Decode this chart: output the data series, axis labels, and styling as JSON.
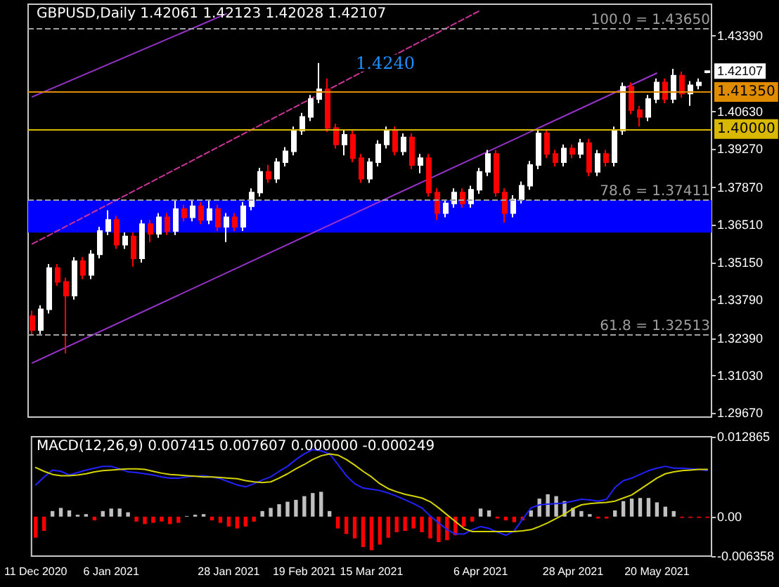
{
  "chart_data": [
    {
      "type": "candlestick",
      "title": "GBPUSD,Daily 1.42061 1.42123 1.42028 1.42107",
      "categories": [
        "11 Dec 2020",
        null,
        null,
        null,
        null,
        null,
        null,
        null,
        null,
        "6 Jan 2021",
        null,
        null,
        null,
        null,
        null,
        null,
        null,
        null,
        null,
        null,
        null,
        null,
        null,
        "28 Jan 2021",
        null,
        null,
        null,
        null,
        null,
        null,
        null,
        null,
        "19 Feb 2021",
        null,
        null,
        null,
        null,
        null,
        null,
        null,
        "15 Mar 2021",
        null,
        null,
        null,
        null,
        null,
        null,
        null,
        null,
        null,
        null,
        null,
        null,
        "6 Apr 2021",
        null,
        null,
        null,
        null,
        null,
        null,
        null,
        null,
        null,
        null,
        "28 Apr 2021",
        null,
        null,
        null,
        null,
        null,
        null,
        null,
        null,
        null,
        "20 May 2021",
        null,
        null,
        null,
        null,
        null,
        null
      ],
      "ohlc": [
        [
          1.3319,
          1.3339,
          1.3249,
          1.3269
        ],
        [
          1.3269,
          1.3359,
          1.3254,
          1.3344
        ],
        [
          1.3344,
          1.3509,
          1.3329,
          1.3494
        ],
        [
          1.3494,
          1.3509,
          1.3429,
          1.3444
        ],
        [
          1.3444,
          1.3459,
          1.3184,
          1.3394
        ],
        [
          1.3394,
          1.3534,
          1.3379,
          1.3519
        ],
        [
          1.3519,
          1.3534,
          1.3454,
          1.3469
        ],
        [
          1.3469,
          1.3559,
          1.3454,
          1.3544
        ],
        [
          1.3544,
          1.3644,
          1.3529,
          1.3629
        ],
        [
          1.3629,
          1.3704,
          1.3614,
          1.3669
        ],
        [
          1.3669,
          1.3684,
          1.3564,
          1.3579
        ],
        [
          1.3579,
          1.3624,
          1.3564,
          1.3609
        ],
        [
          1.3609,
          1.3624,
          1.3499,
          1.3529
        ],
        [
          1.3529,
          1.3669,
          1.3514,
          1.3654
        ],
        [
          1.3654,
          1.3669,
          1.3589,
          1.3619
        ],
        [
          1.3619,
          1.3694,
          1.3604,
          1.3679
        ],
        [
          1.3679,
          1.3694,
          1.3614,
          1.3629
        ],
        [
          1.3629,
          1.3744,
          1.3614,
          1.3709
        ],
        [
          1.3709,
          1.3724,
          1.3664,
          1.3679
        ],
        [
          1.3679,
          1.3744,
          1.3664,
          1.3719
        ],
        [
          1.3719,
          1.3734,
          1.3654,
          1.3669
        ],
        [
          1.3669,
          1.3744,
          1.3654,
          1.3709
        ],
        [
          1.3709,
          1.3724,
          1.3629,
          1.3644
        ],
        [
          1.3644,
          1.3694,
          1.3589,
          1.3679
        ],
        [
          1.3679,
          1.3694,
          1.3629,
          1.3644
        ],
        [
          1.3644,
          1.3734,
          1.3629,
          1.3719
        ],
        [
          1.3719,
          1.3784,
          1.3704,
          1.3769
        ],
        [
          1.3769,
          1.3859,
          1.3754,
          1.3844
        ],
        [
          1.3844,
          1.3869,
          1.3804,
          1.3819
        ],
        [
          1.3819,
          1.3894,
          1.3804,
          1.3879
        ],
        [
          1.3879,
          1.3934,
          1.3864,
          1.3919
        ],
        [
          1.3919,
          1.4009,
          1.3904,
          1.3994
        ],
        [
          1.3994,
          1.4059,
          1.3979,
          1.4044
        ],
        [
          1.4044,
          1.4124,
          1.4029,
          1.4109
        ],
        [
          1.4109,
          1.424,
          1.4094,
          1.4144
        ],
        [
          1.4144,
          1.4184,
          1.3989,
          1.4004
        ],
        [
          1.4004,
          1.4019,
          1.3929,
          1.3944
        ],
        [
          1.3944,
          1.3994,
          1.3904,
          1.3979
        ],
        [
          1.3979,
          1.3994,
          1.3879,
          1.3894
        ],
        [
          1.3894,
          1.3909,
          1.3804,
          1.3819
        ],
        [
          1.3819,
          1.3894,
          1.3804,
          1.3879
        ],
        [
          1.3879,
          1.3959,
          1.3864,
          1.3944
        ],
        [
          1.3944,
          1.4009,
          1.3929,
          1.3994
        ],
        [
          1.3994,
          1.4009,
          1.3904,
          1.3919
        ],
        [
          1.3919,
          1.3984,
          1.3904,
          1.3969
        ],
        [
          1.3969,
          1.3984,
          1.3854,
          1.3869
        ],
        [
          1.3869,
          1.3909,
          1.3839,
          1.3894
        ],
        [
          1.3894,
          1.3909,
          1.3754,
          1.3769
        ],
        [
          1.3769,
          1.3784,
          1.3669,
          1.3694
        ],
        [
          1.3694,
          1.3744,
          1.3679,
          1.3729
        ],
        [
          1.3729,
          1.3784,
          1.3714,
          1.3769
        ],
        [
          1.3769,
          1.3784,
          1.3714,
          1.3729
        ],
        [
          1.3729,
          1.3794,
          1.3714,
          1.3779
        ],
        [
          1.3779,
          1.3859,
          1.3764,
          1.3844
        ],
        [
          1.3844,
          1.3924,
          1.3829,
          1.3909
        ],
        [
          1.3909,
          1.3924,
          1.3754,
          1.3769
        ],
        [
          1.3769,
          1.3784,
          1.3659,
          1.3694
        ],
        [
          1.3694,
          1.3759,
          1.3679,
          1.3744
        ],
        [
          1.3744,
          1.3809,
          1.3729,
          1.3794
        ],
        [
          1.3794,
          1.3884,
          1.3779,
          1.3869
        ],
        [
          1.3869,
          1.3999,
          1.3854,
          1.3984
        ],
        [
          1.3984,
          1.3999,
          1.3894,
          1.3909
        ],
        [
          1.3909,
          1.3924,
          1.3864,
          1.3879
        ],
        [
          1.3879,
          1.3944,
          1.3864,
          1.3929
        ],
        [
          1.3929,
          1.3944,
          1.3894,
          1.3909
        ],
        [
          1.3909,
          1.3964,
          1.3894,
          1.3949
        ],
        [
          1.3949,
          1.3964,
          1.3829,
          1.3844
        ],
        [
          1.3844,
          1.3924,
          1.3829,
          1.3909
        ],
        [
          1.3909,
          1.3924,
          1.3864,
          1.3879
        ],
        [
          1.3879,
          1.4009,
          1.3864,
          1.3994
        ],
        [
          1.3994,
          1.4169,
          1.3979,
          1.4154
        ],
        [
          1.4154,
          1.4169,
          1.4054,
          1.4069
        ],
        [
          1.4069,
          1.4084,
          1.4009,
          1.4044
        ],
        [
          1.4044,
          1.4124,
          1.4029,
          1.4109
        ],
        [
          1.4109,
          1.4184,
          1.4094,
          1.4169
        ],
        [
          1.4169,
          1.4184,
          1.4094,
          1.4109
        ],
        [
          1.4109,
          1.4219,
          1.4094,
          1.4194
        ],
        [
          1.4194,
          1.4209,
          1.4114,
          1.4129
        ],
        [
          1.4129,
          1.4174,
          1.4084,
          1.4159
        ],
        [
          1.4159,
          1.4184,
          1.4144,
          1.4169
        ],
        [
          1.42061,
          1.42123,
          1.42028,
          1.42107
        ]
      ],
      "colors": [
        "#ff0000",
        "#ffffff",
        "#ffffff",
        "#ff0000",
        "#ff0000",
        "#ffffff",
        "#ff0000",
        "#ffffff",
        "#ffffff",
        "#ffffff",
        "#ff0000",
        "#ffffff",
        "#ff0000",
        "#ffffff",
        "#ff0000",
        "#ffffff",
        "#ff0000",
        "#ffffff",
        "#ff0000",
        "#ffffff",
        "#ff0000",
        "#ffffff",
        "#ff0000",
        "#ffffff",
        "#ff0000",
        "#ffffff",
        "#ffffff",
        "#ffffff",
        "#ff0000",
        "#ffffff",
        "#ffffff",
        "#ffffff",
        "#ffffff",
        "#ffffff",
        "#ffffff",
        "#ff0000",
        "#ff0000",
        "#ffffff",
        "#ff0000",
        "#ff0000",
        "#ffffff",
        "#ffffff",
        "#ffffff",
        "#ff0000",
        "#ffffff",
        "#ff0000",
        "#ffffff",
        "#ff0000",
        "#ff0000",
        "#ffffff",
        "#ffffff",
        "#ff0000",
        "#ffffff",
        "#ffffff",
        "#ffffff",
        "#ff0000",
        "#ff0000",
        "#ffffff",
        "#ffffff",
        "#ffffff",
        "#ffffff",
        "#ff0000",
        "#ff0000",
        "#ffffff",
        "#ff0000",
        "#ffffff",
        "#ff0000",
        "#ffffff",
        "#ff0000",
        "#ffffff",
        "#ffffff",
        "#ff0000",
        "#ff0000",
        "#ffffff",
        "#ffffff",
        "#ff0000",
        "#ffffff",
        "#ff0000",
        "#ffffff",
        "#ffffff",
        "#ffffff"
      ],
      "series": [
        {
          "type": "line",
          "x": [
            "11 Dec 2020",
            "20 May 2021"
          ],
          "values": [
            1.3149,
            1.4203
          ],
          "color": "#9933cc",
          "line_style": "solid"
        },
        {
          "type": "line",
          "x": [
            "11 Dec 2020",
            "28 Jan 2021"
          ],
          "values": [
            1.4117,
            1.4419
          ],
          "color": "#9933cc",
          "line_style": "solid"
        },
        {
          "type": "line",
          "x": [
            "11 Dec 2020",
            "6 Apr 2021"
          ],
          "values": [
            1.3582,
            1.443
          ],
          "color": "#cc3399",
          "line_style": "dashed"
        }
      ],
      "marker": "none",
      "ylim": [
        1.2952,
        1.4454
      ],
      "yticks": [
        {
          "value": 1.4339,
          "label": "1.43390"
        },
        {
          "value": 1.4063,
          "label": "1.40630"
        },
        {
          "value": 1.3927,
          "label": "1.39270"
        },
        {
          "value": 1.3787,
          "label": "1.37870"
        },
        {
          "value": 1.3651,
          "label": "1.36510"
        },
        {
          "value": 1.3515,
          "label": "1.35150"
        },
        {
          "value": 1.3379,
          "label": "1.33790"
        },
        {
          "value": 1.3239,
          "label": "1.32390"
        },
        {
          "value": 1.3103,
          "label": "1.31030"
        },
        {
          "value": 1.2967,
          "label": "1.29670"
        }
      ],
      "ref_lines": [
        {
          "axis": "y",
          "value": 1.4365,
          "label": "100.0 = 1.43650",
          "color": "#a0a0a0",
          "line_style": "dashed"
        },
        {
          "axis": "y",
          "value": 1.4135,
          "label": "1.41350",
          "color": "#e08c00",
          "line_style": "solid"
        },
        {
          "axis": "y",
          "value": 1.4,
          "label": "1.40000",
          "color": "#d8b800",
          "line_style": "solid"
        },
        {
          "axis": "y",
          "value": 1.37411,
          "label": "78.6 = 1.37411",
          "color": "#a0a0a0",
          "line_style": "dashed"
        },
        {
          "axis": "y",
          "value": 1.32513,
          "label": "61.8 = 1.32513",
          "color": "#a0a0a0",
          "line_style": "dashed"
        }
      ],
      "bands": [
        {
          "axis": "y",
          "from": 1.3623,
          "to": 1.37411,
          "color": "#0000ff"
        }
      ],
      "annotations": [
        "1.4240",
        "1.42107"
      ],
      "tick_labels": "y",
      "grid": false
    },
    {
      "type": "line",
      "title": "MACD(12,26,9) 0.007415 0.007607 0.000000 -0.000249",
      "categories": [
        "11 Dec 2020",
        null,
        null,
        null,
        null,
        null,
        null,
        null,
        null,
        "6 Jan 2021",
        null,
        null,
        null,
        null,
        null,
        null,
        null,
        null,
        null,
        null,
        null,
        null,
        null,
        "28 Jan 2021",
        null,
        null,
        null,
        null,
        null,
        null,
        null,
        null,
        "19 Feb 2021",
        null,
        null,
        null,
        null,
        null,
        null,
        null,
        "15 Mar 2021",
        null,
        null,
        null,
        null,
        null,
        null,
        null,
        null,
        null,
        null,
        null,
        null,
        "6 Apr 2021",
        null,
        null,
        null,
        null,
        null,
        null,
        null,
        null,
        null,
        null,
        "28 Apr 2021",
        null,
        null,
        null,
        null,
        null,
        null,
        null,
        null,
        null,
        "20 May 2021",
        null,
        null,
        null,
        null,
        null,
        null
      ],
      "series": [
        {
          "type": "bar",
          "values": [
            -0.0034,
            -0.0023,
            0.0009,
            0.0014,
            0.001,
            0.0003,
            0.0004,
            -0.0006,
            0.0009,
            0.0013,
            0.0013,
            0.0007,
            -0.0008,
            -0.0012,
            -0.001,
            -0.0008,
            -0.0012,
            -0.001,
            0.0001,
            0.0003,
            0.0004,
            -0.0006,
            -0.001,
            -0.0016,
            -0.0019,
            -0.0016,
            -0.0008,
            0.0009,
            0.0014,
            0.002,
            0.0024,
            0.0027,
            0.0033,
            0.0038,
            0.004,
            0.0009,
            -0.0019,
            -0.0028,
            -0.0035,
            -0.0049,
            -0.0054,
            -0.0045,
            -0.0034,
            -0.0025,
            -0.0023,
            -0.0019,
            -0.0025,
            -0.0035,
            -0.0041,
            -0.0038,
            -0.003,
            -0.0016,
            -0.0008,
            0.0013,
            0.001,
            -0.0003,
            -0.0006,
            -0.0009,
            -0.0006,
            0.001,
            0.0029,
            0.0036,
            0.0033,
            0.0025,
            0.0014,
            0.0009,
            0.0004,
            -0.0003,
            -0.0003,
            0.001,
            0.0025,
            0.0029,
            0.003,
            0.003,
            0.0023,
            0.0016,
            0.0009,
            -0.0002,
            -0.0002,
            -0.0002,
            -0.0002
          ],
          "colors": [
            "#ff0000",
            "#ff0000",
            "#c0c0c0",
            "#c0c0c0",
            "#c0c0c0",
            "#c0c0c0",
            "#c0c0c0",
            "#ff0000",
            "#c0c0c0",
            "#c0c0c0",
            "#c0c0c0",
            "#c0c0c0",
            "#ff0000",
            "#ff0000",
            "#ff0000",
            "#ff0000",
            "#ff0000",
            "#ff0000",
            "#c0c0c0",
            "#c0c0c0",
            "#c0c0c0",
            "#ff0000",
            "#ff0000",
            "#ff0000",
            "#ff0000",
            "#ff0000",
            "#ff0000",
            "#c0c0c0",
            "#c0c0c0",
            "#c0c0c0",
            "#c0c0c0",
            "#c0c0c0",
            "#c0c0c0",
            "#c0c0c0",
            "#c0c0c0",
            "#c0c0c0",
            "#ff0000",
            "#ff0000",
            "#ff0000",
            "#ff0000",
            "#ff0000",
            "#ff0000",
            "#ff0000",
            "#ff0000",
            "#ff0000",
            "#ff0000",
            "#ff0000",
            "#ff0000",
            "#ff0000",
            "#ff0000",
            "#ff0000",
            "#ff0000",
            "#ff0000",
            "#c0c0c0",
            "#c0c0c0",
            "#ff0000",
            "#ff0000",
            "#ff0000",
            "#ff0000",
            "#c0c0c0",
            "#c0c0c0",
            "#c0c0c0",
            "#c0c0c0",
            "#c0c0c0",
            "#c0c0c0",
            "#c0c0c0",
            "#c0c0c0",
            "#ff0000",
            "#ff0000",
            "#c0c0c0",
            "#c0c0c0",
            "#c0c0c0",
            "#c0c0c0",
            "#c0c0c0",
            "#c0c0c0",
            "#c0c0c0",
            "#c0c0c0",
            "#ff0000",
            "#ff0000",
            "#ff0000",
            "#ff0000"
          ]
        },
        {
          "color": "#2222ff",
          "values": [
            0.0051,
            0.0064,
            0.0075,
            0.0073,
            0.0067,
            0.0071,
            0.0075,
            0.0078,
            0.0081,
            0.0081,
            0.0077,
            0.0072,
            0.0071,
            0.0069,
            0.0067,
            0.0064,
            0.0062,
            0.0062,
            0.0064,
            0.0065,
            0.0066,
            0.0064,
            0.0061,
            0.0056,
            0.0051,
            0.0048,
            0.0053,
            0.0059,
            0.0064,
            0.0073,
            0.0081,
            0.0092,
            0.0101,
            0.0108,
            0.0106,
            0.0101,
            0.0084,
            0.0066,
            0.0053,
            0.0046,
            0.0044,
            0.0042,
            0.0038,
            0.0033,
            0.0027,
            0.0021,
            0.0014,
            0.0001,
            -0.001,
            -0.0021,
            -0.0028,
            -0.0028,
            -0.0021,
            -0.0016,
            -0.0019,
            -0.0025,
            -0.003,
            -0.0023,
            -0.0004,
            0.0014,
            0.0019,
            0.002,
            0.0021,
            0.0022,
            0.0025,
            0.0028,
            0.0027,
            0.0025,
            0.0028,
            0.0047,
            0.0058,
            0.0062,
            0.0068,
            0.0074,
            0.0078,
            0.0081,
            0.0078,
            0.0078,
            0.0077,
            0.0076,
            0.0074
          ]
        },
        {
          "color": "#d4d400",
          "values": [
            0.0079,
            0.0073,
            0.0068,
            0.0066,
            0.0066,
            0.0067,
            0.0069,
            0.0072,
            0.0074,
            0.0075,
            0.0076,
            0.0077,
            0.0077,
            0.0076,
            0.0073,
            0.007,
            0.0068,
            0.0067,
            0.0066,
            0.0065,
            0.0064,
            0.0064,
            0.0063,
            0.0062,
            0.0061,
            0.0058,
            0.0056,
            0.0055,
            0.0056,
            0.0062,
            0.0069,
            0.0077,
            0.0084,
            0.0092,
            0.0098,
            0.0101,
            0.0099,
            0.0092,
            0.0083,
            0.0073,
            0.0064,
            0.0053,
            0.0045,
            0.004,
            0.0036,
            0.0033,
            0.003,
            0.0024,
            0.0014,
            0.0003,
            -0.0008,
            -0.0019,
            -0.0024,
            -0.0024,
            -0.0024,
            -0.0024,
            -0.0024,
            -0.0024,
            -0.0023,
            -0.0021,
            -0.0016,
            -0.001,
            -0.0003,
            0.0004,
            0.0013,
            0.0019,
            0.0021,
            0.0022,
            0.0023,
            0.0025,
            0.003,
            0.0035,
            0.0044,
            0.0053,
            0.0062,
            0.0069,
            0.0072,
            0.0074,
            0.0075,
            0.0076,
            0.0076
          ]
        }
      ],
      "marker": "none",
      "ylim": [
        -0.006358,
        0.012865
      ],
      "yticks": [
        0.012865,
        {
          "value": 0,
          "label": "0.00"
        },
        -0.006358
      ],
      "grid": false
    }
  ]
}
